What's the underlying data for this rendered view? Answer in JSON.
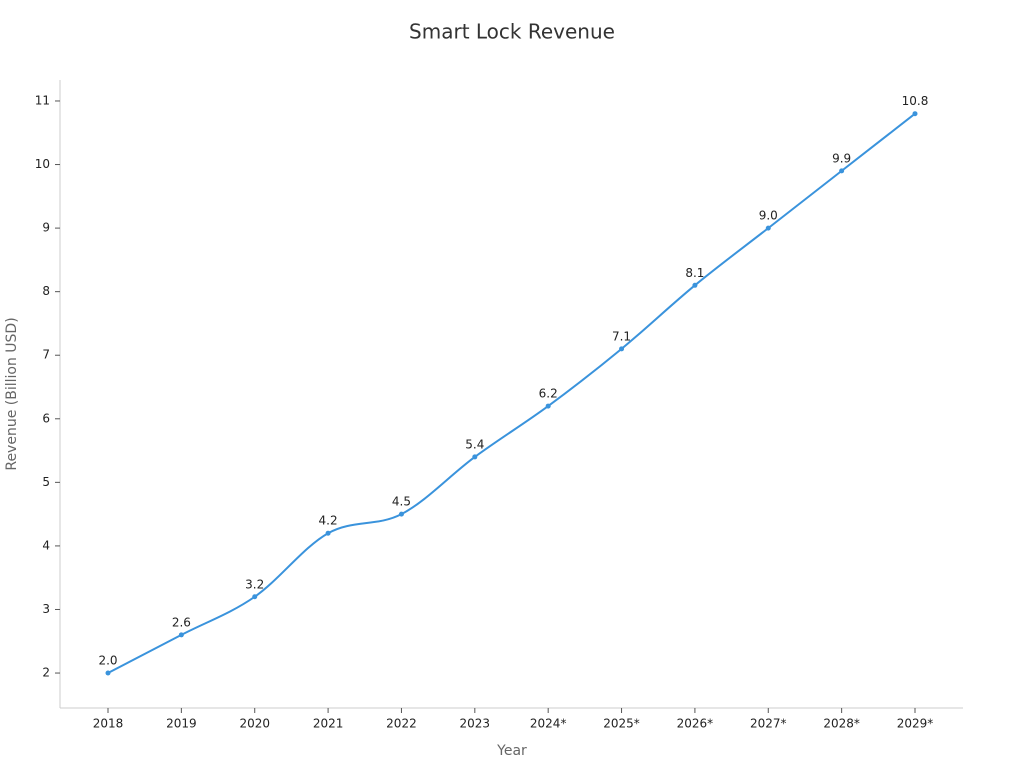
{
  "chart_data": {
    "type": "line",
    "title": "Smart Lock Revenue",
    "x_label": "Year",
    "y_label": "Revenue (Billion USD)",
    "categories": [
      "2018",
      "2019",
      "2020",
      "2021",
      "2022",
      "2023",
      "2024*",
      "2025*",
      "2026*",
      "2027*",
      "2028*",
      "2029*"
    ],
    "values": [
      2.0,
      2.6,
      3.2,
      4.2,
      4.5,
      5.4,
      6.2,
      7.1,
      8.1,
      9.0,
      9.9,
      10.8
    ],
    "value_labels": [
      "2.0",
      "2.6",
      "3.2",
      "4.2",
      "4.5",
      "5.4",
      "6.2",
      "7.1",
      "8.1",
      "9.0",
      "9.9",
      "10.8"
    ],
    "color": "#3a93dc",
    "ylim": [
      1.45,
      11.33
    ],
    "yticks": [
      2,
      3,
      4,
      5,
      6,
      7,
      8,
      9,
      10,
      11
    ],
    "grid": false
  }
}
